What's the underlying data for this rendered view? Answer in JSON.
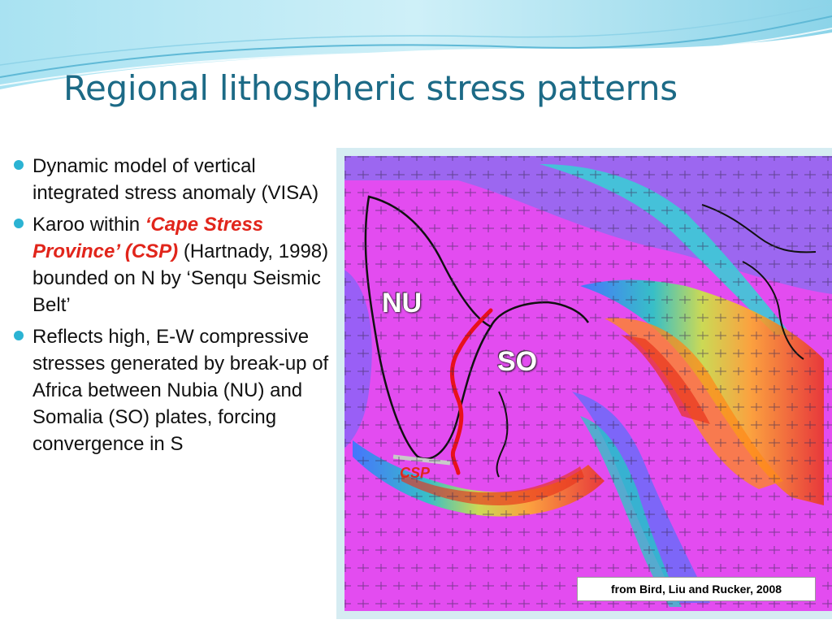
{
  "slide": {
    "title": "Regional lithospheric stress patterns",
    "bullets": [
      {
        "text": "Dynamic model of vertical integrated stress anomaly (VISA)"
      },
      {
        "prefix": "Karoo within ",
        "highlight": "‘Cape Stress Province’ (CSP)",
        "suffix": " (Hartnady, 1998) bounded on N by ‘Senqu Seismic Belt’"
      },
      {
        "text": " Reflects high, E-W compressive stresses generated by break-up of Africa between Nubia (NU) and Somalia (SO) plates, forcing convergence in S"
      }
    ]
  },
  "figure": {
    "labels": {
      "nu": "NU",
      "so": "SO",
      "csp": "CSP"
    },
    "credit": "from Bird, Liu and Rucker, 2008"
  },
  "colors": {
    "title": "#1c6a86",
    "bullet": "#2bb3d3",
    "highlight": "#e1251b",
    "background_map": "#e040f0"
  }
}
